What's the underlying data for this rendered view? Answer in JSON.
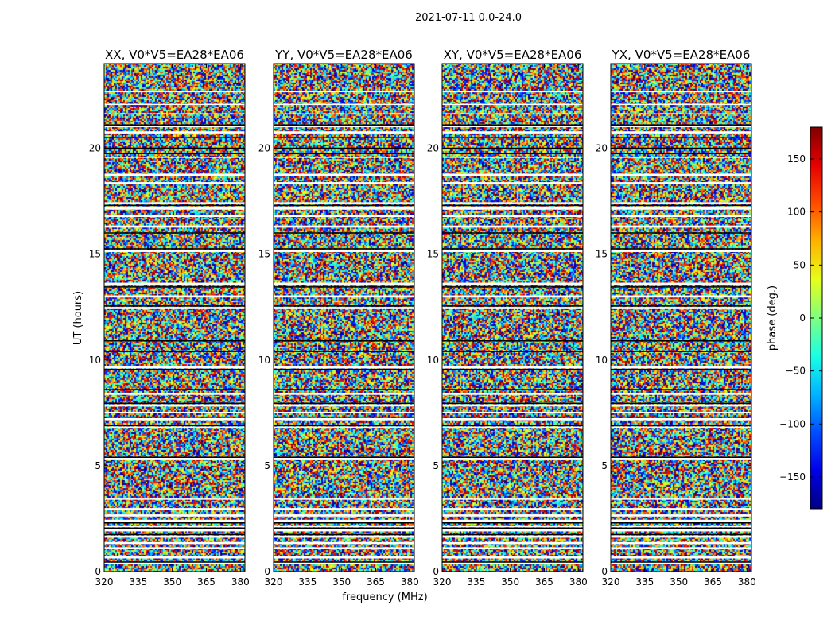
{
  "figure_title": "2021-07-11 0.0-24.0",
  "chart_data": {
    "type": "heatmap",
    "suptitle": "2021-07-11 0.0-24.0",
    "xlabel": "frequency (MHz)",
    "ylabel": "UT (hours)",
    "xlim": [
      320,
      382
    ],
    "ylim": [
      0,
      24
    ],
    "xticks": [
      320,
      335,
      350,
      365,
      380
    ],
    "yticks": [
      0,
      5,
      10,
      15,
      20
    ],
    "panels": [
      {
        "title": "XX, V0*V5=EA28*EA06",
        "polarization": "XX"
      },
      {
        "title": "YY, V0*V5=EA28*EA06",
        "polarization": "YY"
      },
      {
        "title": "XY, V0*V5=EA28*EA06",
        "polarization": "XY"
      },
      {
        "title": "YX, V0*V5=EA28*EA06",
        "polarization": "YX"
      }
    ],
    "colorbar": {
      "label": "phase (deg.)",
      "colormap": "jet",
      "range": [
        -180,
        180
      ],
      "ticks": [
        -150,
        -100,
        -50,
        0,
        50,
        100,
        150
      ]
    },
    "flagged_ut_bands": [
      [
        0.35,
        0.45
      ],
      [
        0.62,
        0.72
      ],
      [
        1.05,
        1.15
      ],
      [
        1.3,
        1.4
      ],
      [
        1.6,
        1.7
      ],
      [
        1.9,
        2.0
      ],
      [
        2.1,
        2.15
      ],
      [
        2.35,
        2.45
      ],
      [
        2.6,
        2.7
      ],
      [
        2.9,
        3.0
      ],
      [
        3.4,
        3.45
      ],
      [
        5.3,
        5.4
      ],
      [
        6.8,
        6.85
      ],
      [
        7.15,
        7.25
      ],
      [
        7.5,
        7.55
      ],
      [
        7.8,
        7.9
      ],
      [
        8.35,
        8.45
      ],
      [
        9.6,
        9.7
      ],
      [
        12.4,
        12.5
      ],
      [
        12.95,
        13.05
      ],
      [
        13.55,
        13.65
      ],
      [
        15.1,
        15.2
      ],
      [
        16.25,
        16.35
      ],
      [
        16.75,
        16.85
      ],
      [
        17.1,
        17.25
      ],
      [
        17.4,
        17.45
      ],
      [
        18.3,
        18.4
      ],
      [
        18.7,
        18.8
      ],
      [
        19.55,
        19.6
      ],
      [
        20.7,
        20.8
      ],
      [
        21.0,
        21.05
      ],
      [
        21.6,
        21.65
      ],
      [
        22.05,
        22.1
      ],
      [
        22.65,
        22.7
      ]
    ],
    "black_ut_lines": [
      0.45,
      1.75,
      2.05,
      2.3,
      5.4,
      6.9,
      7.3,
      7.95,
      8.6,
      9.55,
      10.4,
      10.9,
      12.55,
      13.45,
      15.25,
      16.0,
      17.3,
      19.75,
      20.0,
      20.5,
      21.1
    ]
  }
}
